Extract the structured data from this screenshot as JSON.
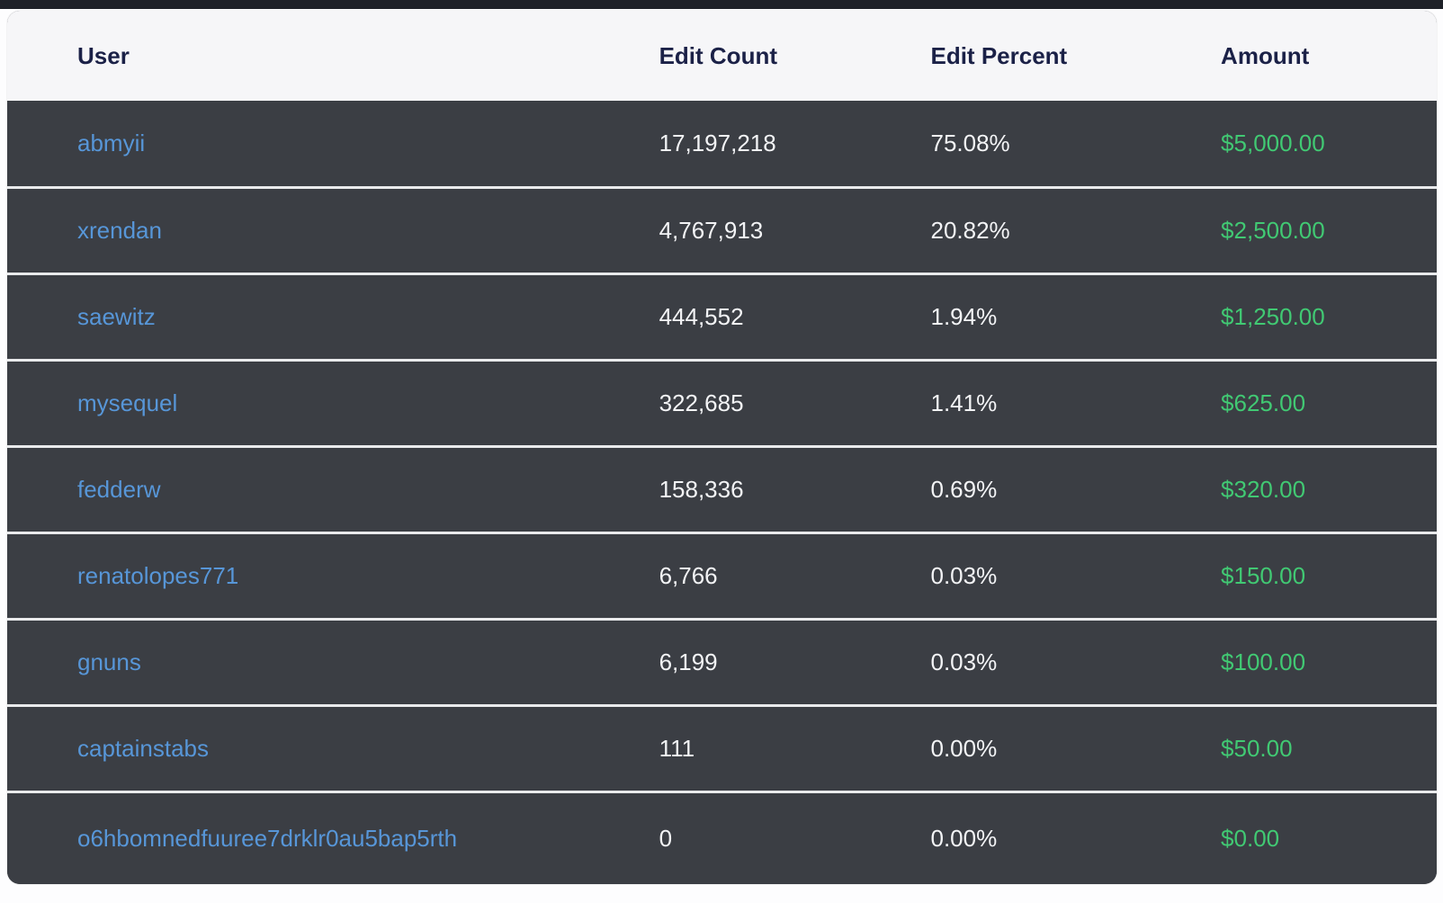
{
  "table": {
    "columns": [
      {
        "key": "user",
        "label": "User"
      },
      {
        "key": "edit_count",
        "label": "Edit Count"
      },
      {
        "key": "edit_percent",
        "label": "Edit Percent"
      },
      {
        "key": "amount",
        "label": "Amount"
      }
    ],
    "rows": [
      {
        "user": "abmyii",
        "edit_count": "17,197,218",
        "edit_percent": "75.08%",
        "amount": "$5,000.00"
      },
      {
        "user": "xrendan",
        "edit_count": "4,767,913",
        "edit_percent": "20.82%",
        "amount": "$2,500.00"
      },
      {
        "user": "saewitz",
        "edit_count": "444,552",
        "edit_percent": "1.94%",
        "amount": "$1,250.00"
      },
      {
        "user": "mysequel",
        "edit_count": "322,685",
        "edit_percent": "1.41%",
        "amount": "$625.00"
      },
      {
        "user": "fedderw",
        "edit_count": "158,336",
        "edit_percent": "0.69%",
        "amount": "$320.00"
      },
      {
        "user": "renatolopes771",
        "edit_count": "6,766",
        "edit_percent": "0.03%",
        "amount": "$150.00"
      },
      {
        "user": "gnuns",
        "edit_count": "6,199",
        "edit_percent": "0.03%",
        "amount": "$100.00"
      },
      {
        "user": "captainstabs",
        "edit_count": "111",
        "edit_percent": "0.00%",
        "amount": "$50.00"
      },
      {
        "user": "o6hbomnedfuuree7drklr0au5bap5rth",
        "edit_count": "0",
        "edit_percent": "0.00%",
        "amount": "$0.00"
      }
    ],
    "colors": {
      "header_bg": "#f6f6f8",
      "header_text": "#1b2147",
      "row_bg": "#3b3e44",
      "row_text": "#f3f4f6",
      "separator": "#e9eaec",
      "user_link": "#5796d8",
      "amount_green": "#41c973",
      "top_strip": "#1e2128",
      "page_bg": "#fdfdfe"
    }
  }
}
